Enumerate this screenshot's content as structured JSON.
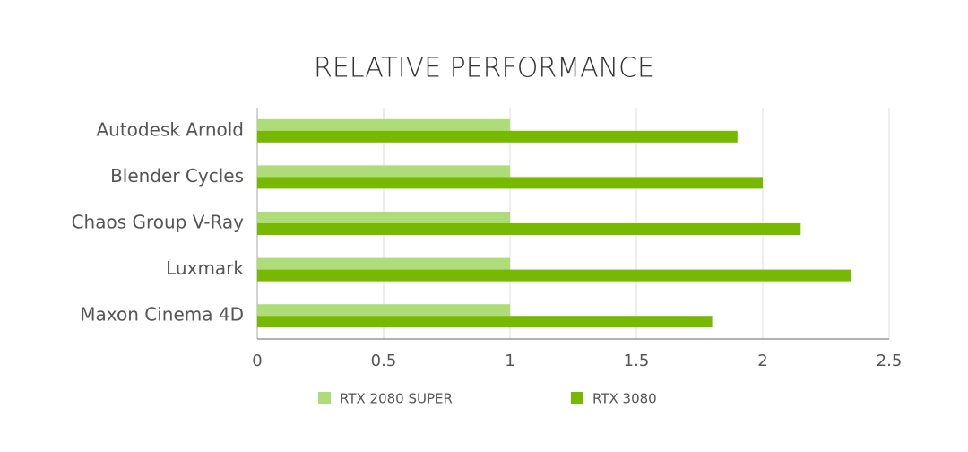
{
  "chart_data": {
    "type": "hbar",
    "title": "RELATIVE PERFORMANCE",
    "categories": [
      "Autodesk Arnold",
      "Blender Cycles",
      "Chaos Group V-Ray",
      "Luxmark",
      "Maxon Cinema 4D"
    ],
    "series": [
      {
        "name": "RTX 2080 SUPER",
        "color": "#addc78",
        "values": [
          1,
          1,
          1,
          1,
          1
        ]
      },
      {
        "name": "RTX 3080",
        "color": "#76b900",
        "values": [
          1.9,
          2.0,
          2.15,
          2.35,
          1.8
        ]
      }
    ],
    "xlim": [
      0,
      2.5
    ],
    "xticks": [
      0,
      0.5,
      1,
      1.5,
      2,
      2.5
    ],
    "grid": true,
    "legend": "bottom"
  }
}
